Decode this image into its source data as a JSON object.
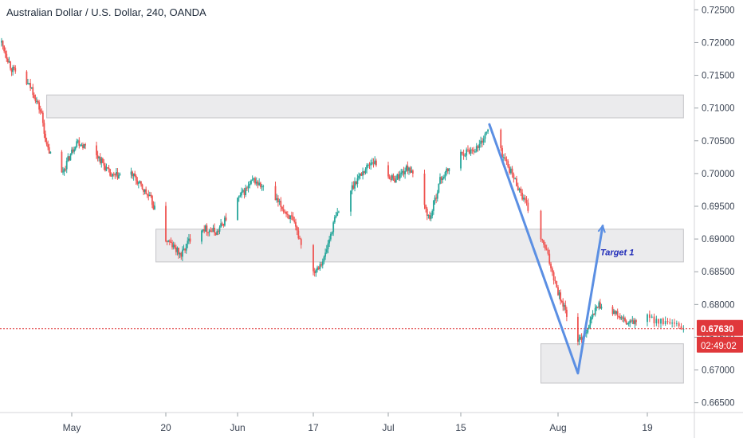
{
  "header": {
    "title": "Australian Dollar / U.S. Dollar, 240, OANDA"
  },
  "colors": {
    "up": "#26a69a",
    "down": "#ef5350",
    "zone_fill": "#e7e7ea",
    "zone_stroke": "#c4c4c8",
    "projection": "#5b8fe3",
    "price_line": "#e0383b",
    "label_text": "#1f2bb8"
  },
  "chart_data": {
    "type": "candlestick",
    "symbol": "Australian Dollar / U.S. Dollar",
    "interval": "240",
    "source": "OANDA",
    "y_axis": {
      "ticks": [
        "0.72500",
        "0.72000",
        "0.71500",
        "0.71000",
        "0.70500",
        "0.70000",
        "0.69500",
        "0.69000",
        "0.68500",
        "0.68000",
        "0.67500",
        "0.67000",
        "0.66500"
      ],
      "ylim": [
        0.6635,
        0.7265
      ]
    },
    "x_axis": {
      "ticks": [
        "May",
        "20",
        "Jun",
        "17",
        "Jul",
        "15",
        "Aug",
        "19"
      ]
    },
    "current_price": {
      "value": "0.67630",
      "countdown": "02:49:02"
    },
    "series": [
      {
        "anchors": [
          {
            "d": "Apr 17",
            "p": 0.72
          },
          {
            "d": "Apr 19",
            "p": 0.716
          },
          {
            "d": "Apr 23",
            "p": 0.713
          },
          {
            "d": "Apr 25",
            "p": 0.709
          },
          {
            "d": "Apr 26",
            "p": 0.704
          },
          {
            "d": "Apr 29",
            "p": 0.7
          },
          {
            "d": "May 2",
            "p": 0.705
          },
          {
            "d": "May 6",
            "p": 0.703
          },
          {
            "d": "May 9",
            "p": 0.6995
          },
          {
            "d": "May 13",
            "p": 0.7
          },
          {
            "d": "May 17",
            "p": 0.696
          },
          {
            "d": "May 20",
            "p": 0.69
          },
          {
            "d": "May 23",
            "p": 0.6875
          },
          {
            "d": "May 26",
            "p": 0.692
          },
          {
            "d": "May 30",
            "p": 0.691
          },
          {
            "d": "Jun 3",
            "p": 0.696
          },
          {
            "d": "Jun 6",
            "p": 0.699
          },
          {
            "d": "Jun 10",
            "p": 0.696
          },
          {
            "d": "Jun 13",
            "p": 0.693
          },
          {
            "d": "Jun 17",
            "p": 0.685
          },
          {
            "d": "Jun 19",
            "p": 0.687
          },
          {
            "d": "Jun 21",
            "p": 0.693
          },
          {
            "d": "Jun 25",
            "p": 0.699
          },
          {
            "d": "Jun 28",
            "p": 0.702
          },
          {
            "d": "Jul 2",
            "p": 0.699
          },
          {
            "d": "Jul 5",
            "p": 0.701
          },
          {
            "d": "Jul 9",
            "p": 0.693
          },
          {
            "d": "Jul 11",
            "p": 0.699
          },
          {
            "d": "Jul 15",
            "p": 0.703
          },
          {
            "d": "Jul 18",
            "p": 0.704
          },
          {
            "d": "Jul 20",
            "p": 0.707
          },
          {
            "d": "Jul 25",
            "p": 0.698
          },
          {
            "d": "Jul 30",
            "p": 0.688
          },
          {
            "d": "Aug 1",
            "p": 0.682
          },
          {
            "d": "Aug 5",
            "p": 0.674
          },
          {
            "d": "Aug 7",
            "p": 0.6765
          },
          {
            "d": "Aug 9",
            "p": 0.68
          },
          {
            "d": "Aug 12",
            "p": 0.679
          },
          {
            "d": "Aug 15",
            "p": 0.677
          },
          {
            "d": "Aug 19",
            "p": 0.678
          },
          {
            "d": "Aug 23",
            "p": 0.6763
          }
        ]
      }
    ],
    "zones": [
      {
        "name": "upper-resistance-zone",
        "from": "Apr 26",
        "to": "Aug 23",
        "top": 0.712,
        "bottom": 0.7085
      },
      {
        "name": "middle-zone",
        "from": "May 18",
        "to": "Aug 23",
        "top": 0.6915,
        "bottom": 0.6865
      },
      {
        "name": "lower-support-zone",
        "from": "Jul 29",
        "to": "Aug 23",
        "top": 0.674,
        "bottom": 0.668
      }
    ],
    "projection": [
      {
        "d": "Jul 20",
        "p": 0.7075
      },
      {
        "d": "Aug 5",
        "p": 0.6695
      },
      {
        "d": "Aug 10",
        "p": 0.692
      }
    ],
    "annotations": [
      {
        "text": "Target 1",
        "d": "Aug 10",
        "p": 0.688
      }
    ]
  }
}
